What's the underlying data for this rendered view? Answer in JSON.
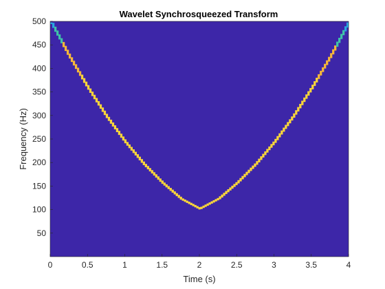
{
  "chart_data": {
    "type": "heatmap",
    "title": "Wavelet Synchrosqueezed Transform",
    "xlabel": "Time (s)",
    "ylabel": "Frequency (Hz)",
    "xlim": [
      0,
      4
    ],
    "ylim": [
      0,
      500
    ],
    "x_ticks": [
      "0",
      "0.5",
      "1",
      "1.5",
      "2",
      "2.5",
      "3",
      "3.5",
      "4"
    ],
    "y_ticks": [
      "50",
      "100",
      "150",
      "200",
      "250",
      "300",
      "350",
      "400",
      "450",
      "500"
    ],
    "grid": false,
    "legend": "none",
    "background_color": "#3d26a8",
    "ridge": {
      "description": "quadratic chirp ridge, minimum near t=2 s",
      "x": [
        0.0,
        0.25,
        0.5,
        0.75,
        1.0,
        1.25,
        1.5,
        1.75,
        2.0,
        2.25,
        2.5,
        2.75,
        3.0,
        3.25,
        3.5,
        3.75,
        4.0
      ],
      "y": [
        500,
        426,
        359,
        298,
        244,
        197,
        157,
        123,
        102,
        123,
        157,
        197,
        244,
        298,
        359,
        426,
        500
      ],
      "colors": {
        "main": "#f9d53a",
        "mid": "#f6b73a",
        "edge": "#3fc3a8",
        "tip": "#2aa7e0"
      }
    }
  }
}
